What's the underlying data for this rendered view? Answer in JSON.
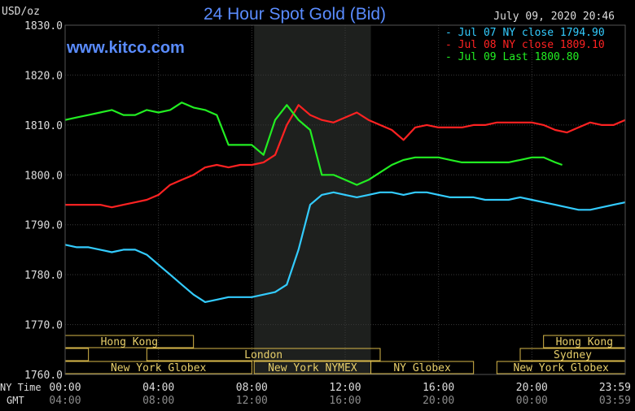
{
  "chart_data": {
    "type": "line",
    "title": "24 Hour Spot Gold (Bid)",
    "unit_label": "USD/oz",
    "watermark": "www.kitco.com",
    "timestamp": "July 09, 2020 20:46",
    "ylim": [
      1760,
      1830
    ],
    "y_ticks": [
      "1830.0",
      "1820.0",
      "1810.0",
      "1800.0",
      "1790.0",
      "1780.0",
      "1770.0",
      "1760.0"
    ],
    "x_range_hours": [
      0,
      24
    ],
    "ny_time_label": "NY Time",
    "gmt_label": "GMT",
    "ny_time_ticks": [
      "00:00",
      "04:00",
      "08:00",
      "12:00",
      "16:00",
      "20:00",
      "23:59"
    ],
    "gmt_ticks": [
      "04:00",
      "08:00",
      "12:00",
      "16:00",
      "20:00",
      "00:00",
      "03:59"
    ],
    "legend": [
      {
        "prefix": "-",
        "text": "Jul 07 NY close 1794.90",
        "color": "#33ccff"
      },
      {
        "prefix": "-",
        "text": "Jul 08 NY close 1809.10",
        "color": "#ff2222"
      },
      {
        "prefix": "-",
        "text": "Jul 09 Last 1800.80",
        "color": "#22ee22"
      }
    ],
    "shaded_range_hours": [
      8.1,
      13.1
    ],
    "sessions": [
      {
        "label": "Hong Kong",
        "row": 0,
        "start": 0,
        "end": 5.5
      },
      {
        "label": "Hong Kong",
        "row": 0,
        "start": 20.5,
        "end": 24
      },
      {
        "label": "London",
        "row": 1,
        "start": 3.5,
        "end": 13.5
      },
      {
        "label": "Sydney",
        "row": 1,
        "start": 19.5,
        "end": 24
      },
      {
        "label": "",
        "row": 1,
        "start": 0,
        "end": 1
      },
      {
        "label": "New York Globex",
        "row": 2,
        "start": 0,
        "end": 8
      },
      {
        "label": "New York NYMEX",
        "row": 2,
        "start": 8.1,
        "end": 13.1
      },
      {
        "label": "NY Globex",
        "row": 2,
        "start": 13.1,
        "end": 17.5
      },
      {
        "label": "New York Globex",
        "row": 2,
        "start": 18.5,
        "end": 24
      }
    ],
    "series": [
      {
        "color": "#33ccff",
        "x": [
          0,
          0.5,
          1,
          1.5,
          2,
          2.5,
          3,
          3.5,
          4,
          4.5,
          5,
          5.5,
          6,
          6.5,
          7,
          7.5,
          8,
          8.5,
          9,
          9.5,
          10,
          10.5,
          11,
          11.5,
          12,
          12.5,
          13,
          13.5,
          14,
          14.5,
          15,
          15.5,
          16,
          16.5,
          17,
          17.5,
          18,
          18.5,
          19,
          19.5,
          20,
          20.5,
          21,
          21.5,
          22,
          22.5,
          23,
          23.5,
          24
        ],
        "values": [
          1786,
          1785.5,
          1785.5,
          1785,
          1784.5,
          1785,
          1785,
          1784,
          1782,
          1780,
          1778,
          1776,
          1774.5,
          1775,
          1775.5,
          1775.5,
          1775.5,
          1776,
          1776.5,
          1778,
          1785,
          1794,
          1796,
          1796.5,
          1796,
          1795.5,
          1796,
          1796.5,
          1796.5,
          1796,
          1796.5,
          1796.5,
          1796,
          1795.5,
          1795.5,
          1795.5,
          1795,
          1795,
          1795,
          1795.5,
          1795,
          1794.5,
          1794,
          1793.5,
          1793,
          1793,
          1793.5,
          1794,
          1794.5
        ]
      },
      {
        "color": "#ff2222",
        "x": [
          0,
          0.5,
          1,
          1.5,
          2,
          2.5,
          3,
          3.5,
          4,
          4.5,
          5,
          5.5,
          6,
          6.5,
          7,
          7.5,
          8,
          8.5,
          9,
          9.5,
          10,
          10.5,
          11,
          11.5,
          12,
          12.5,
          13,
          13.5,
          14,
          14.5,
          15,
          15.5,
          16,
          16.5,
          17,
          17.5,
          18,
          18.5,
          19,
          19.5,
          20,
          20.5,
          21,
          21.5,
          22,
          22.5,
          23,
          23.5,
          24
        ],
        "values": [
          1794,
          1794,
          1794,
          1794,
          1793.5,
          1794,
          1794.5,
          1795,
          1796,
          1798,
          1799,
          1800,
          1801.5,
          1802,
          1801.5,
          1802,
          1802,
          1802.5,
          1804,
          1810,
          1814,
          1812,
          1811,
          1810.5,
          1811.5,
          1812.5,
          1811,
          1810,
          1809,
          1807,
          1809.5,
          1810,
          1809.5,
          1809.5,
          1809.5,
          1810,
          1810,
          1810.5,
          1810.5,
          1810.5,
          1810.5,
          1810,
          1809,
          1808.5,
          1809.5,
          1810.5,
          1810,
          1810,
          1811
        ]
      },
      {
        "color": "#22ee22",
        "x": [
          0,
          0.5,
          1,
          1.5,
          2,
          2.5,
          3,
          3.5,
          4,
          4.5,
          5,
          5.5,
          6,
          6.5,
          7,
          7.5,
          8,
          8.5,
          9,
          9.5,
          10,
          10.5,
          11,
          11.5,
          12,
          12.5,
          13,
          13.5,
          14,
          14.5,
          15,
          15.5,
          16,
          16.5,
          17,
          17.5,
          18,
          18.5,
          19,
          19.5,
          20,
          20.5,
          21,
          21.3
        ],
        "values": [
          1811,
          1811.5,
          1812,
          1812.5,
          1813,
          1812,
          1812,
          1813,
          1812.5,
          1813,
          1814.5,
          1813.5,
          1813,
          1812,
          1806,
          1806,
          1806,
          1804,
          1811,
          1814,
          1811,
          1809,
          1800,
          1800,
          1799,
          1798,
          1799,
          1800.5,
          1802,
          1803,
          1803.5,
          1803.5,
          1803.5,
          1803,
          1802.5,
          1802.5,
          1802.5,
          1802.5,
          1802.5,
          1803,
          1803.5,
          1803.5,
          1802.5,
          1802
        ]
      }
    ]
  }
}
